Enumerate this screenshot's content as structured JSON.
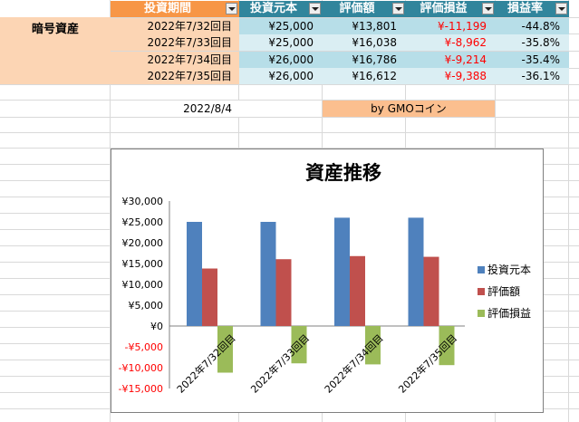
{
  "sheet": {
    "headers": [
      "投資期間",
      "投資元本",
      "評価額",
      "評価損益",
      "損益率"
    ],
    "row_label": "暗号資産",
    "rows": [
      {
        "period": "2022年7/32回目",
        "principal": "¥25,000",
        "valuation": "¥13,801",
        "pnl": "¥-11,199",
        "rate": "-44.8%"
      },
      {
        "period": "2022年7/33回目",
        "principal": "¥25,000",
        "valuation": "¥16,038",
        "pnl": "¥-8,962",
        "rate": "-35.8%"
      },
      {
        "period": "2022年7/34回目",
        "principal": "¥26,000",
        "valuation": "¥16,786",
        "pnl": "¥-9,214",
        "rate": "-35.4%"
      },
      {
        "period": "2022年7/35回目",
        "principal": "¥26,000",
        "valuation": "¥16,612",
        "pnl": "¥-9,388",
        "rate": "-36.1%"
      }
    ],
    "date": "2022/8/4",
    "credit": "by GMOコイン"
  },
  "colors": {
    "orange_header": "#f79646",
    "teal_header": "#31859c",
    "peach": "#fcd5b4",
    "light_blue": "#b7dee8",
    "negative": "#ff0000"
  },
  "chart_data": {
    "type": "bar",
    "title": "資産推移",
    "categories": [
      "2022年7/32回目",
      "2022年7/33回目",
      "2022年7/34回目",
      "2022年7/35回目"
    ],
    "series": [
      {
        "name": "投資元本",
        "values": [
          25000,
          25000,
          26000,
          26000
        ],
        "color": "#4f81bd"
      },
      {
        "name": "評価額",
        "values": [
          13801,
          16038,
          16786,
          16612
        ],
        "color": "#c0504d"
      },
      {
        "name": "評価損益",
        "values": [
          -11199,
          -8962,
          -9214,
          -9388
        ],
        "color": "#9bbb59"
      }
    ],
    "ylim": [
      -15000,
      30000
    ],
    "yticks": [
      {
        "value": 30000,
        "label": "¥30,000"
      },
      {
        "value": 25000,
        "label": "¥25,000"
      },
      {
        "value": 20000,
        "label": "¥20,000"
      },
      {
        "value": 15000,
        "label": "¥15,000"
      },
      {
        "value": 10000,
        "label": "¥10,000"
      },
      {
        "value": 5000,
        "label": "¥5,000"
      },
      {
        "value": 0,
        "label": "¥0"
      },
      {
        "value": -5000,
        "label": "-¥5,000"
      },
      {
        "value": -10000,
        "label": "-¥10,000"
      },
      {
        "value": -15000,
        "label": "-¥15,000"
      }
    ],
    "legend": "right",
    "grid": false
  }
}
